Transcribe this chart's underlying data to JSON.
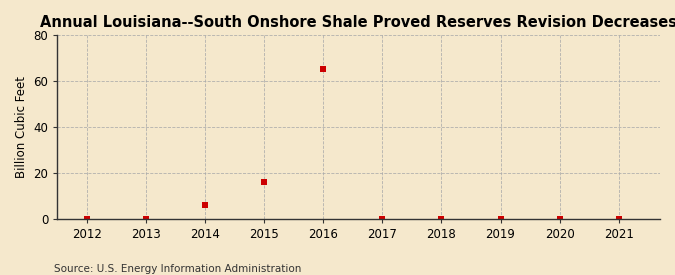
{
  "title": "Annual Louisiana--South Onshore Shale Proved Reserves Revision Decreases",
  "ylabel": "Billion Cubic Feet",
  "source": "Source: U.S. Energy Information Administration",
  "x_years": [
    2012,
    2013,
    2014,
    2015,
    2016,
    2017,
    2018,
    2019,
    2020,
    2021
  ],
  "y_values": [
    0.0,
    0.0,
    6.0,
    16.0,
    65.5,
    0.0,
    0.0,
    0.0,
    0.0,
    0.0
  ],
  "xlim": [
    2011.5,
    2021.7
  ],
  "ylim": [
    0,
    80
  ],
  "yticks": [
    0,
    20,
    40,
    60,
    80
  ],
  "xticks": [
    2012,
    2013,
    2014,
    2015,
    2016,
    2017,
    2018,
    2019,
    2020,
    2021
  ],
  "marker_color": "#cc0000",
  "marker_shape": "s",
  "marker_size": 4,
  "bg_color": "#f5e8cc",
  "grid_color": "#aaaaaa",
  "spine_color": "#333333",
  "title_fontsize": 10.5,
  "label_fontsize": 8.5,
  "tick_fontsize": 8.5,
  "source_fontsize": 7.5
}
